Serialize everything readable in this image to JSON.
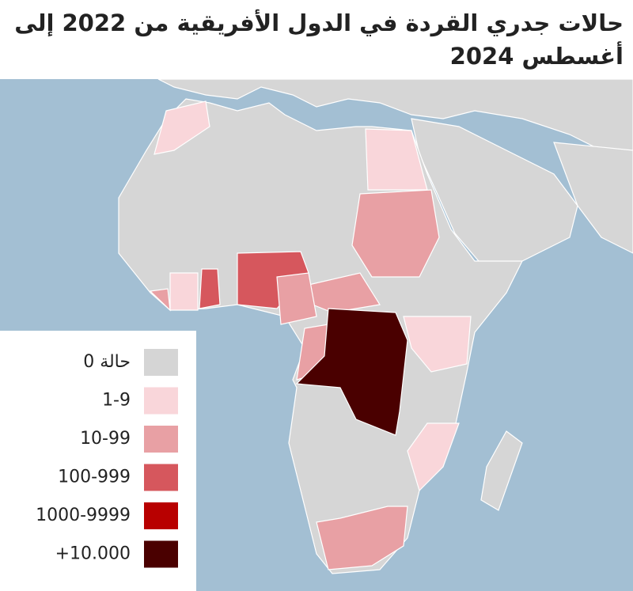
{
  "title": "حالات جدري القردة في الدول الأفريقية من 2022 إلى أغسطس 2024",
  "legend": [
    {
      "label": "0 حالة",
      "color": "#d5d5d5"
    },
    {
      "label": "1-9",
      "color": "#f9d6da"
    },
    {
      "label": "10-99",
      "color": "#e8a0a4"
    },
    {
      "label": "100-999",
      "color": "#d6575d"
    },
    {
      "label": "1000-9999",
      "color": "#b80000"
    },
    {
      "label": "+10.000",
      "color": "#4a0000"
    }
  ]
}
